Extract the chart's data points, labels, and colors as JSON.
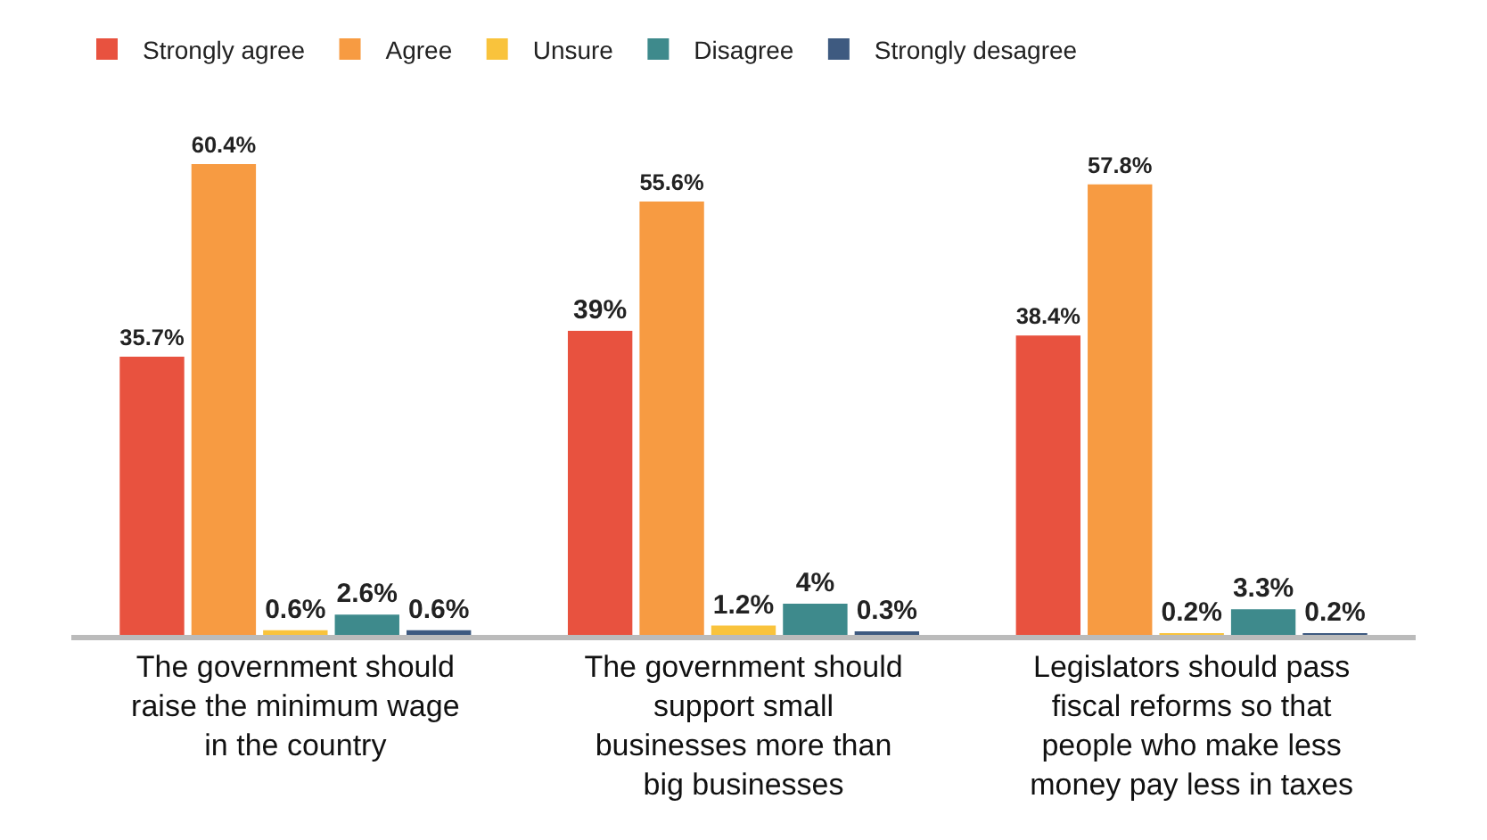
{
  "chart_data": {
    "type": "bar",
    "categories": [
      "The government should raise the minimum wage in the country",
      "The government should support small businesses more than big businesses",
      "Legislators should pass fiscal reforms so that people who make less money pay less in taxes"
    ],
    "series": [
      {
        "name": "Strongly agree",
        "color": "#e8523f",
        "values": [
          35.7,
          39,
          38.4
        ],
        "value_labels": [
          "35.7%",
          "39%",
          "38.4%"
        ]
      },
      {
        "name": "Agree",
        "color": "#f79b42",
        "values": [
          60.4,
          55.6,
          57.8
        ],
        "value_labels": [
          "60.4%",
          "55.6%",
          "57.8%"
        ]
      },
      {
        "name": "Unsure",
        "color": "#f9c33c",
        "values": [
          0.6,
          1.2,
          0.2
        ],
        "value_labels": [
          "0.6%",
          "1.2%",
          "0.2%"
        ]
      },
      {
        "name": "Disagree",
        "color": "#3e8a8c",
        "values": [
          2.6,
          4,
          3.3
        ],
        "value_labels": [
          "2.6%",
          "4%",
          "3.3%"
        ]
      },
      {
        "name": "Strongly desagree",
        "color": "#3e5a80",
        "values": [
          0.6,
          0.3,
          0.2
        ],
        "value_labels": [
          "0.6%",
          "0.3%",
          "0.2%"
        ]
      }
    ],
    "legend": "top"
  }
}
